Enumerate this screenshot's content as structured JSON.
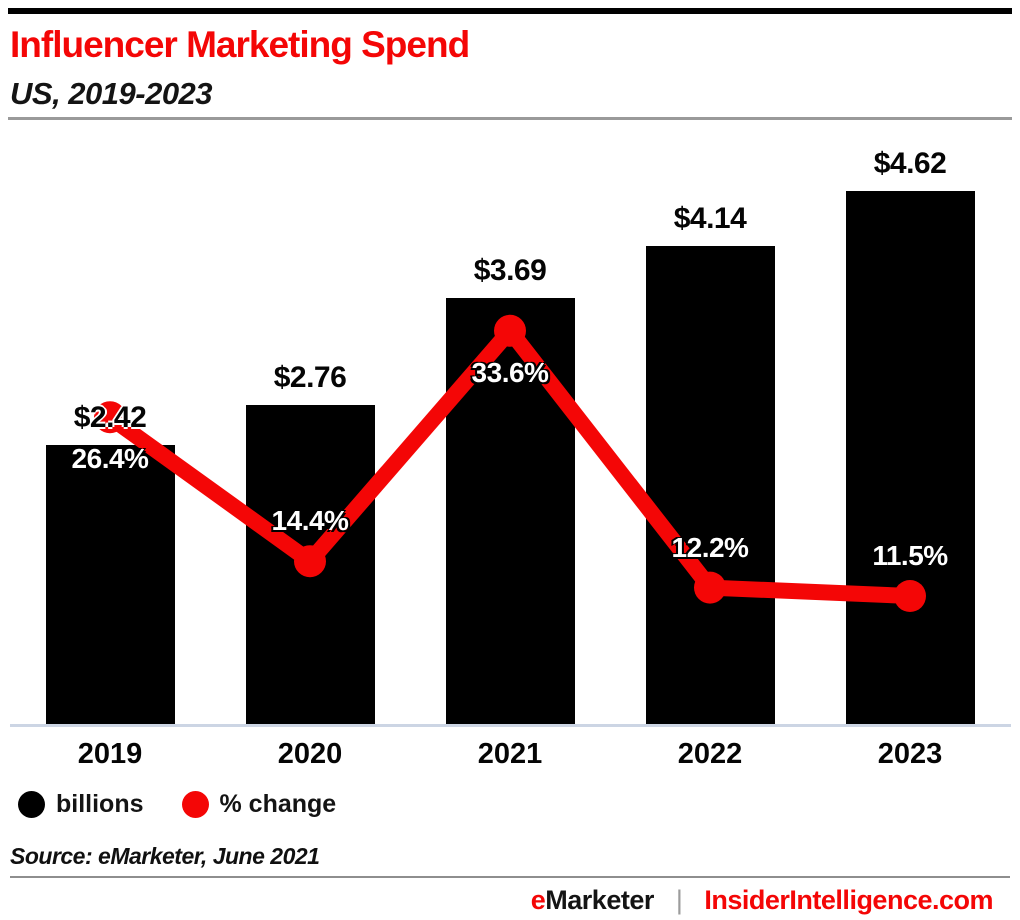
{
  "header": {
    "title": "Influencer Marketing Spend",
    "subtitle": "US, 2019-2023"
  },
  "chart_data": {
    "type": "bar",
    "subtype": "bar-with-line-overlay",
    "title": "Influencer Marketing Spend",
    "subtitle": "US, 2019-2023",
    "categories": [
      "2019",
      "2020",
      "2021",
      "2022",
      "2023"
    ],
    "series": [
      {
        "name": "billions",
        "type": "bar",
        "unit": "US$ billions",
        "color": "#000000",
        "values": [
          2.42,
          2.76,
          3.69,
          4.14,
          4.62
        ],
        "labels": [
          "$2.42",
          "$2.76",
          "$3.69",
          "$4.14",
          "$4.62"
        ]
      },
      {
        "name": "% change",
        "type": "line",
        "unit": "percent",
        "color": "#f40606",
        "values": [
          26.4,
          14.4,
          33.6,
          12.2,
          11.5
        ],
        "labels": [
          "26.4%",
          "14.4%",
          "33.6%",
          "12.2%",
          "11.5%"
        ],
        "label_positions": [
          "below",
          "above",
          "below",
          "above",
          "above"
        ]
      }
    ],
    "xlabel": "",
    "ylabel": "",
    "bar_axis_range": [
      0,
      5
    ],
    "grid": false,
    "axis_line_color": "#ccd5e4",
    "legend_position": "bottom-left",
    "legend": [
      {
        "label": "billions",
        "color": "#000000"
      },
      {
        "label": "% change",
        "color": "#f40606"
      }
    ]
  },
  "source": {
    "text": "Source: eMarketer, June 2021"
  },
  "footer": {
    "brand_e": "e",
    "brand_rest": "Marketer",
    "separator": "|",
    "site": "InsiderIntelligence.com"
  }
}
